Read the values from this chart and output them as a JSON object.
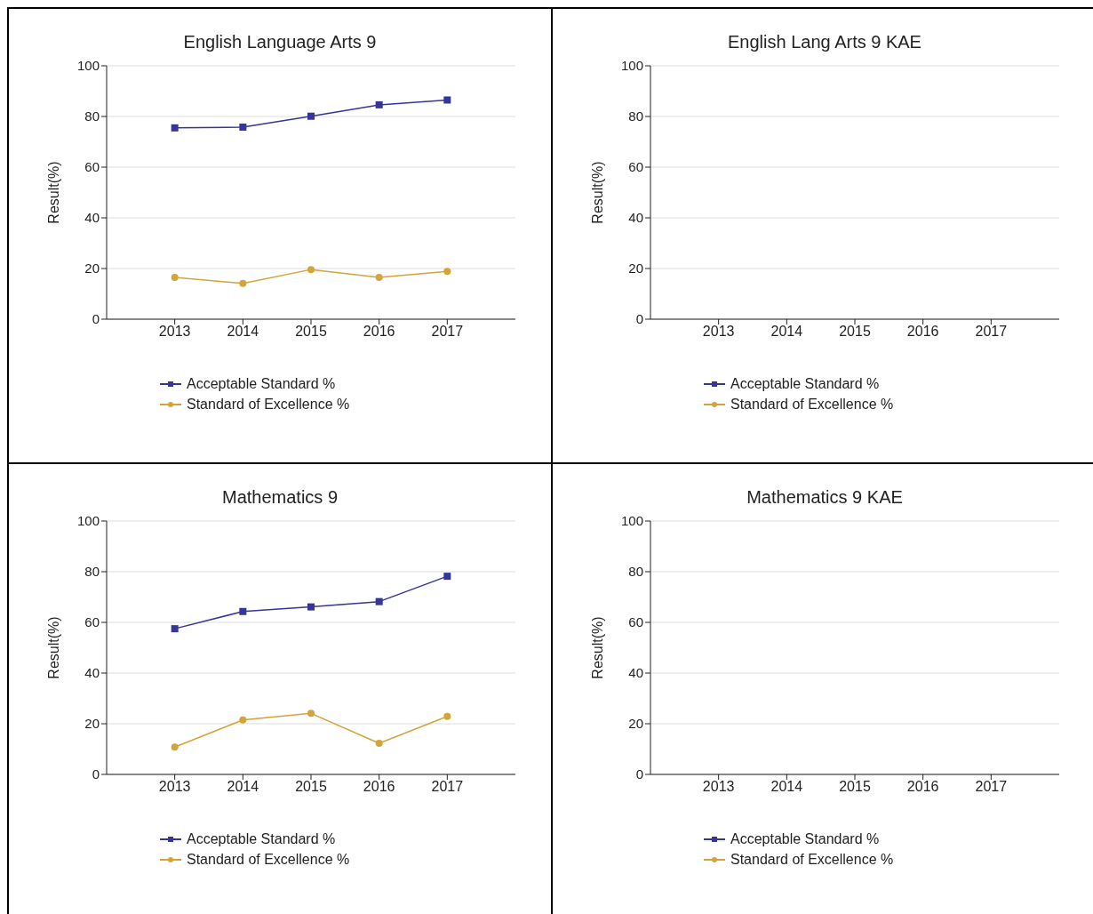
{
  "chart_data": [
    {
      "type": "line",
      "title": "English Language Arts 9",
      "ylabel": "Result(%)",
      "categories": [
        "2013",
        "2014",
        "2015",
        "2016",
        "2017"
      ],
      "ylim": [
        0,
        100
      ],
      "yticks": [
        0,
        20,
        40,
        60,
        80,
        100
      ],
      "grid": "y",
      "legend": "bottom",
      "series": [
        {
          "name": "Acceptable Standard %",
          "color": "#35359a",
          "marker": "square",
          "values": [
            75.5,
            75.8,
            80.1,
            84.6,
            86.5
          ]
        },
        {
          "name": "Standard of Excellence %",
          "color": "#d2a43a",
          "marker": "circle",
          "values": [
            16.5,
            14.1,
            19.6,
            16.5,
            18.9
          ]
        }
      ]
    },
    {
      "type": "line",
      "title": "English Lang Arts 9 KAE",
      "ylabel": "Result(%)",
      "categories": [
        "2013",
        "2014",
        "2015",
        "2016",
        "2017"
      ],
      "ylim": [
        0,
        100
      ],
      "yticks": [
        0,
        20,
        40,
        60,
        80,
        100
      ],
      "grid": "y",
      "legend": "bottom",
      "series": [
        {
          "name": "Acceptable Standard %",
          "color": "#35359a",
          "marker": "square",
          "values": [
            null,
            null,
            null,
            null,
            null
          ]
        },
        {
          "name": "Standard of Excellence %",
          "color": "#d2a43a",
          "marker": "circle",
          "values": [
            null,
            null,
            null,
            null,
            null
          ]
        }
      ]
    },
    {
      "type": "line",
      "title": "Mathematics 9",
      "ylabel": "Result(%)",
      "categories": [
        "2013",
        "2014",
        "2015",
        "2016",
        "2017"
      ],
      "ylim": [
        0,
        100
      ],
      "yticks": [
        0,
        20,
        40,
        60,
        80,
        100
      ],
      "grid": "y",
      "legend": "bottom",
      "series": [
        {
          "name": "Acceptable Standard %",
          "color": "#35359a",
          "marker": "square",
          "values": [
            57.5,
            64.3,
            66.1,
            68.2,
            78.2
          ]
        },
        {
          "name": "Standard of Excellence %",
          "color": "#d2a43a",
          "marker": "circle",
          "values": [
            10.8,
            21.5,
            24.1,
            12.3,
            22.9
          ]
        }
      ]
    },
    {
      "type": "line",
      "title": "Mathematics 9 KAE",
      "ylabel": "Result(%)",
      "categories": [
        "2013",
        "2014",
        "2015",
        "2016",
        "2017"
      ],
      "ylim": [
        0,
        100
      ],
      "yticks": [
        0,
        20,
        40,
        60,
        80,
        100
      ],
      "grid": "y",
      "legend": "bottom",
      "series": [
        {
          "name": "Acceptable Standard %",
          "color": "#35359a",
          "marker": "square",
          "values": [
            null,
            null,
            null,
            null,
            null
          ]
        },
        {
          "name": "Standard of Excellence %",
          "color": "#d2a43a",
          "marker": "circle",
          "values": [
            null,
            null,
            null,
            null,
            null
          ]
        }
      ]
    }
  ]
}
